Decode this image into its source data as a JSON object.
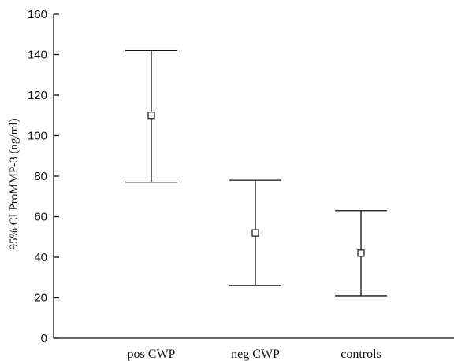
{
  "chart_data": {
    "type": "errorbar",
    "title": "",
    "xlabel": "",
    "ylabel": "95% CI  ProMMP-3 (ng/ml)",
    "ylim": [
      0,
      160
    ],
    "yticks": [
      0,
      20,
      40,
      60,
      80,
      100,
      120,
      140,
      160
    ],
    "categories": [
      "pos CWP",
      "neg CWP",
      "controls"
    ],
    "series": [
      {
        "mean": [
          110,
          52,
          42
        ],
        "lower": [
          77,
          26,
          21
        ],
        "upper": [
          142,
          78,
          63
        ]
      }
    ],
    "grid": false,
    "legend": "none"
  }
}
